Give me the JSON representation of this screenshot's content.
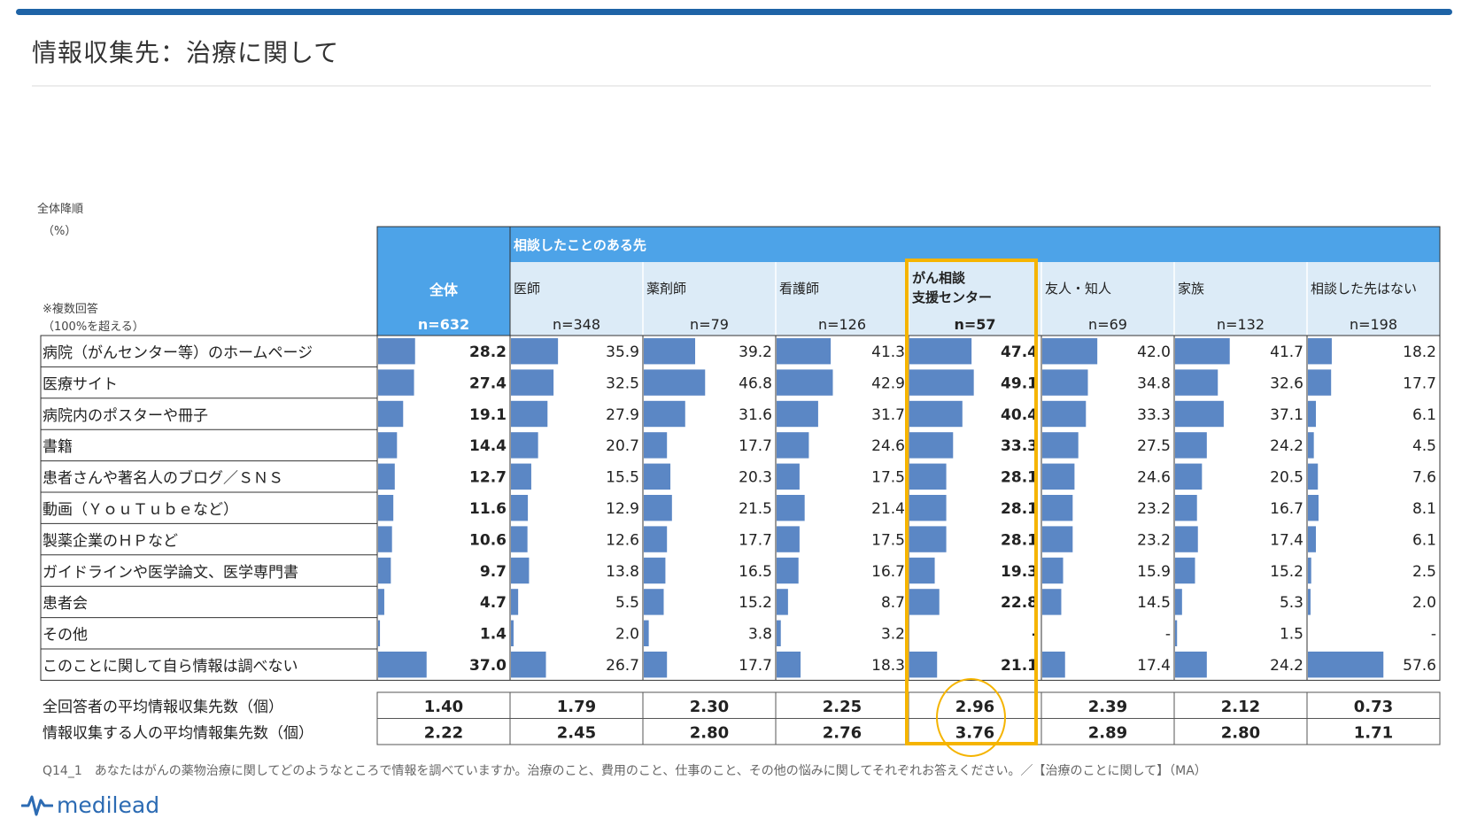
{
  "page": {
    "title": "情報収集先：治療に関して",
    "sort_label": "全体降順",
    "unit_label": "（%）",
    "multi_label_1": "※複数回答",
    "multi_label_2": "（100%を超える）",
    "footnote": "Q14_1　あなたはがんの薬物治療に関してどのようなところで情報を調べていますか。治療のこと、費用のこと、仕事のこと、その他の悩みに関してそれぞれお答えください。／【治療のことに関して】（MA）",
    "logo_text": "medilead"
  },
  "chart_data": {
    "type": "table",
    "group_header": "相談したことのある先",
    "columns": [
      {
        "name": "全体",
        "n": "n=632"
      },
      {
        "name": "医師",
        "n": "n=348"
      },
      {
        "name": "薬剤師",
        "n": "n=79"
      },
      {
        "name": "看護師",
        "n": "n=126"
      },
      {
        "name": "がん相談\n支援センター",
        "n": "n=57"
      },
      {
        "name": "友人・知人",
        "n": "n=69"
      },
      {
        "name": "家族",
        "n": "n=132"
      },
      {
        "name": "相談した先はない",
        "n": "n=198"
      }
    ],
    "rows": [
      {
        "label": "病院（がんセンター等）のホームページ",
        "values": [
          28.2,
          35.9,
          39.2,
          41.3,
          47.4,
          42.0,
          41.7,
          18.2
        ]
      },
      {
        "label": "医療サイト",
        "values": [
          27.4,
          32.5,
          46.8,
          42.9,
          49.1,
          34.8,
          32.6,
          17.7
        ]
      },
      {
        "label": "病院内のポスターや冊子",
        "values": [
          19.1,
          27.9,
          31.6,
          31.7,
          40.4,
          33.3,
          37.1,
          6.1
        ]
      },
      {
        "label": "書籍",
        "values": [
          14.4,
          20.7,
          17.7,
          24.6,
          33.3,
          27.5,
          24.2,
          4.5
        ]
      },
      {
        "label": "患者さんや著名人のブログ／ＳＮＳ",
        "values": [
          12.7,
          15.5,
          20.3,
          17.5,
          28.1,
          24.6,
          20.5,
          7.6
        ]
      },
      {
        "label": "動画（ＹｏｕＴｕｂｅなど）",
        "values": [
          11.6,
          12.9,
          21.5,
          21.4,
          28.1,
          23.2,
          16.7,
          8.1
        ]
      },
      {
        "label": "製薬企業のＨＰなど",
        "values": [
          10.6,
          12.6,
          17.7,
          17.5,
          28.1,
          23.2,
          17.4,
          6.1
        ]
      },
      {
        "label": "ガイドラインや医学論文、医学専門書",
        "values": [
          9.7,
          13.8,
          16.5,
          16.7,
          19.3,
          15.9,
          15.2,
          2.5
        ]
      },
      {
        "label": "患者会",
        "values": [
          4.7,
          5.5,
          15.2,
          8.7,
          22.8,
          14.5,
          5.3,
          2.0
        ]
      },
      {
        "label": "その他",
        "values": [
          1.4,
          2.0,
          3.8,
          3.2,
          null,
          null,
          1.5,
          null
        ]
      },
      {
        "label": "このことに関して自ら情報は調べない",
        "values": [
          37.0,
          26.7,
          17.7,
          18.3,
          21.1,
          17.4,
          24.2,
          57.6
        ]
      }
    ],
    "summary": [
      {
        "label": "全回答者の平均情報収集先数（個）",
        "values": [
          "1.40",
          "1.79",
          "2.30",
          "2.25",
          "2.96",
          "2.39",
          "2.12",
          "0.73"
        ]
      },
      {
        "label": "情報収集する人の平均情報集先数（個）",
        "values": [
          "2.22",
          "2.45",
          "2.80",
          "2.76",
          "3.76",
          "2.89",
          "2.80",
          "1.71"
        ]
      }
    ],
    "missing_symbol": "-",
    "highlight_column": 4,
    "bold_columns": [
      0,
      4
    ],
    "colors": {
      "bar": "#5b87c5",
      "header_total": "#4da3e8",
      "header_group": "#4da3e8",
      "header_sub": "#dcebf7",
      "highlight": "#f5b400",
      "top_bar": "#1e63a6"
    }
  }
}
